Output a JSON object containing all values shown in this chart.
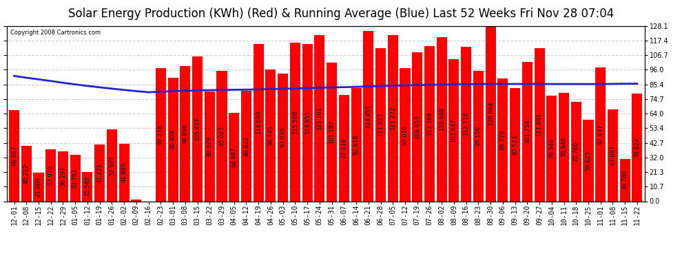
{
  "title": "Solar Energy Production (KWh) (Red) & Running Average (Blue) Last 52 Weeks Fri Nov 28 07:04",
  "copyright": "Copyright 2008 Cartronics.com",
  "bar_color": "#ff0000",
  "avg_line_color": "#2222cc",
  "background_color": "#ffffff",
  "plot_bg_color": "#ffffff",
  "yticks": [
    0.0,
    10.7,
    21.3,
    32.0,
    42.7,
    53.4,
    64.0,
    74.7,
    85.4,
    96.0,
    106.7,
    117.4,
    128.1
  ],
  "categories": [
    "12-01",
    "12-08",
    "12-15",
    "12-22",
    "12-29",
    "01-05",
    "01-12",
    "01-19",
    "01-26",
    "02-02",
    "02-09",
    "02-16",
    "02-23",
    "03-01",
    "03-08",
    "03-15",
    "03-22",
    "03-29",
    "04-05",
    "04-12",
    "04-19",
    "04-26",
    "05-03",
    "05-10",
    "05-17",
    "05-24",
    "05-31",
    "06-07",
    "06-14",
    "06-21",
    "06-28",
    "07-05",
    "07-12",
    "07-19",
    "07-26",
    "08-02",
    "08-09",
    "08-16",
    "08-23",
    "08-30",
    "09-06",
    "09-13",
    "09-20",
    "09-27",
    "10-04",
    "10-11",
    "10-18",
    "10-25",
    "11-01",
    "11-08",
    "11-15",
    "11-22"
  ],
  "values": [
    66.667,
    40.212,
    21.009,
    37.97,
    36.297,
    33.782,
    21.549,
    41.221,
    52.507,
    41.885,
    1.413,
    0.0,
    97.118,
    90.404,
    98.896,
    105.497,
    80.029,
    95.023,
    64.487,
    80.822,
    114.699,
    96.445,
    93.03,
    115.568,
    114.955,
    121.101,
    101.187,
    77.818,
    82.818,
    124.455,
    111.827,
    121.272,
    97.016,
    108.653,
    113.369,
    119.988,
    103.647,
    112.718,
    95.156,
    128.064,
    89.729,
    82.523,
    101.754,
    111.891,
    76.94,
    78.94,
    72.766,
    59.625,
    97.937,
    67.087,
    30.78,
    78.824
  ],
  "running_avg": [
    91.5,
    90.2,
    89.0,
    87.8,
    86.5,
    85.3,
    84.2,
    83.2,
    82.2,
    81.3,
    80.4,
    79.6,
    80.0,
    80.3,
    80.6,
    80.9,
    81.1,
    81.3,
    81.4,
    81.5,
    81.7,
    81.9,
    82.1,
    82.4,
    82.6,
    82.9,
    83.1,
    83.3,
    83.5,
    83.8,
    84.1,
    84.4,
    84.6,
    84.8,
    85.0,
    85.2,
    85.35,
    85.45,
    85.55,
    85.65,
    85.65,
    85.65,
    85.65,
    85.65,
    85.6,
    85.6,
    85.6,
    85.55,
    85.6,
    85.7,
    85.8,
    85.85
  ],
  "ylim": [
    0.0,
    128.1
  ],
  "title_fontsize": 12,
  "tick_fontsize": 7,
  "bar_value_fontsize": 6,
  "grid_color": "#cccccc",
  "grid_style": "--"
}
